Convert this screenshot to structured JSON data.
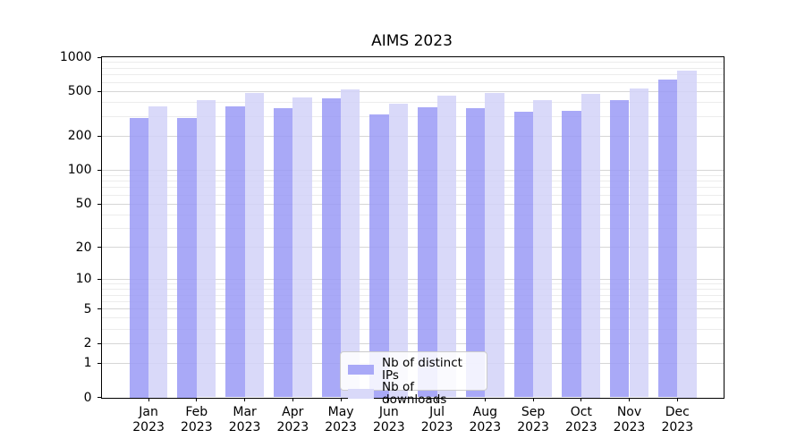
{
  "title": "AIMS 2023",
  "colors": {
    "bar_distinct_ips": "#a9a9f7",
    "bar_downloads": "#d9d9f9",
    "grid_major": "#d6d6d6",
    "grid_minor": "#ececec",
    "axis": "#000000",
    "legend_border": "#cccccc",
    "background": "#ffffff"
  },
  "chart_data": {
    "type": "bar",
    "title": "AIMS 2023",
    "categories": [
      "Jan 2023",
      "Feb 2023",
      "Mar 2023",
      "Apr 2023",
      "May 2023",
      "Jun 2023",
      "Jul 2023",
      "Aug 2023",
      "Sep 2023",
      "Oct 2023",
      "Nov 2023",
      "Dec 2023"
    ],
    "series": [
      {
        "name": "Nb of distinct IPs",
        "color": "#a9a9f7",
        "values": [
          290,
          290,
          370,
          355,
          435,
          315,
          360,
          355,
          330,
          337,
          415,
          632
        ]
      },
      {
        "name": "Nb of downloads",
        "color": "#d9d9f9",
        "values": [
          368,
          420,
          485,
          442,
          524,
          392,
          460,
          487,
          415,
          479,
          531,
          768
        ]
      }
    ],
    "yticks": [
      0,
      1,
      2,
      5,
      10,
      20,
      50,
      100,
      200,
      500,
      1000
    ],
    "ylim": [
      0,
      1000
    ],
    "yscale": "symlog (positions follow log10(value+1))",
    "xlabel": "",
    "ylabel": "",
    "grid": "horizontal major + minor gridlines",
    "legend_position": "lower center inside plot"
  }
}
